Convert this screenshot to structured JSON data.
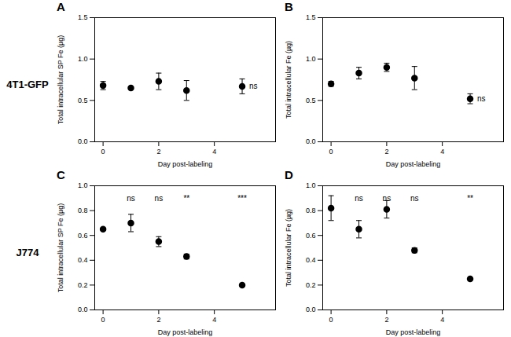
{
  "chart_data": [
    {
      "type": "scatter",
      "title": "A",
      "subtitle": "4T1-GFP",
      "xlabel": "Day post-labeling",
      "ylabel": "Total intracellular SP Fe (µg)",
      "x": [
        0,
        1,
        2,
        3,
        5
      ],
      "values": [
        0.68,
        0.65,
        0.73,
        0.62,
        0.67
      ],
      "errors": [
        0.05,
        0.0,
        0.1,
        0.12,
        0.09
      ],
      "xlim": [
        -0.3,
        6.2
      ],
      "ylim": [
        0,
        1.5
      ],
      "xticks": [
        0,
        2,
        4
      ],
      "yticks": [
        {
          "value": 0,
          "label": "0.0"
        },
        0.5,
        {
          "value": 1,
          "label": "1.0"
        },
        1.5
      ],
      "annotations": [
        {
          "text": "ns",
          "x": 5.4,
          "y": 0.67
        }
      ],
      "color": "black",
      "marker": "circle",
      "grid": false
    },
    {
      "type": "scatter",
      "title": "B",
      "xlabel": "Day post-labeling",
      "ylabel": "Total intracellular Fe (µg)",
      "x": [
        0,
        1,
        2,
        3,
        5
      ],
      "values": [
        0.7,
        0.83,
        0.9,
        0.77,
        0.52
      ],
      "errors": [
        0.03,
        0.07,
        0.05,
        0.14,
        0.06
      ],
      "xlim": [
        -0.3,
        6.2
      ],
      "ylim": [
        0,
        1.5
      ],
      "xticks": [
        0,
        2,
        4
      ],
      "yticks": [
        {
          "value": 0,
          "label": "0.0"
        },
        0.5,
        {
          "value": 1,
          "label": "1.0"
        },
        1.5
      ],
      "annotations": [
        {
          "text": "ns",
          "x": 5.4,
          "y": 0.52
        }
      ],
      "color": "black",
      "marker": "circle",
      "grid": false
    },
    {
      "type": "scatter",
      "title": "C",
      "subtitle": "J774",
      "xlabel": "Day post-labeling",
      "ylabel": "Total intracellular SP Fe (µg)",
      "x": [
        0,
        1,
        2,
        3,
        5
      ],
      "values": [
        0.65,
        0.7,
        0.55,
        0.43,
        0.2
      ],
      "errors": [
        0.0,
        0.07,
        0.04,
        0.02,
        0.0
      ],
      "xlim": [
        -0.3,
        6.2
      ],
      "ylim": [
        0,
        1.0
      ],
      "xticks": [
        0,
        2,
        4
      ],
      "yticks": [
        {
          "value": 0,
          "label": "0.0"
        },
        0.2,
        0.4,
        0.6,
        0.8,
        {
          "value": 1,
          "label": "1.0"
        }
      ],
      "annotations": [
        {
          "text": "ns",
          "x": 1,
          "y": 0.9
        },
        {
          "text": "ns",
          "x": 2,
          "y": 0.9
        },
        {
          "text": "**",
          "x": 3,
          "y": 0.9
        },
        {
          "text": "***",
          "x": 5,
          "y": 0.9
        }
      ],
      "color": "black",
      "marker": "circle",
      "grid": false
    },
    {
      "type": "scatter",
      "title": "D",
      "xlabel": "Day post-labeling",
      "ylabel": "Total intracellular Fe (µg)",
      "x": [
        0,
        1,
        2,
        3,
        5
      ],
      "values": [
        0.82,
        0.65,
        0.81,
        0.48,
        0.25
      ],
      "errors": [
        0.1,
        0.07,
        0.07,
        0.02,
        0.0
      ],
      "xlim": [
        -0.3,
        6.2
      ],
      "ylim": [
        0,
        1.0
      ],
      "xticks": [
        0,
        2,
        4
      ],
      "yticks": [
        {
          "value": 0,
          "label": "0.0"
        },
        0.2,
        0.4,
        0.6,
        0.8,
        {
          "value": 1,
          "label": "1.0"
        }
      ],
      "annotations": [
        {
          "text": "ns",
          "x": 1,
          "y": 0.9
        },
        {
          "text": "ns",
          "x": 2,
          "y": 0.9
        },
        {
          "text": "ns",
          "x": 3,
          "y": 0.9
        },
        {
          "text": "**",
          "x": 5,
          "y": 0.9
        }
      ],
      "color": "black",
      "marker": "circle",
      "grid": false
    }
  ]
}
